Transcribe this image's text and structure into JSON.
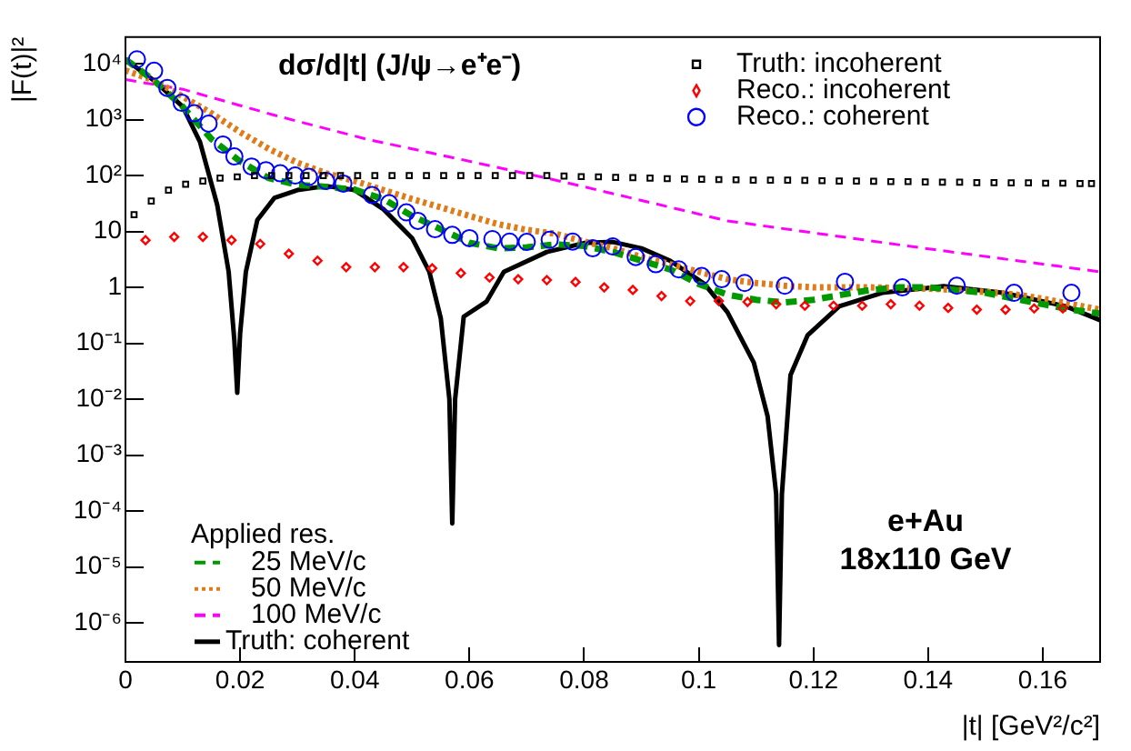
{
  "chart_data": {
    "type": "line",
    "title": "dσ/d|t| (J/ψ→e⁺e⁻)",
    "xlabel": "|t| [GeV²/c²]",
    "ylabel": "|F(t)|²",
    "legend_title": "Applied res.",
    "legend": "left",
    "grid": false,
    "log": "y",
    "annotations": [
      "e+Au",
      "18x110 GeV"
    ],
    "xlim": [
      0,
      0.17
    ],
    "xticks": [
      0,
      0.02,
      0.04,
      0.06,
      0.08,
      0.1,
      0.12,
      0.14,
      0.16
    ],
    "ylim": [
      2e-07,
      30000
    ],
    "yticks": [
      {
        "value": 1e-06,
        "label": "10⁻⁶"
      },
      {
        "value": 1e-05,
        "label": "10⁻⁵"
      },
      {
        "value": 0.0001,
        "label": "10⁻⁴"
      },
      {
        "value": 0.001,
        "label": "10⁻³"
      },
      {
        "value": 0.01,
        "label": "10⁻²"
      },
      {
        "value": 0.1,
        "label": "10⁻¹"
      },
      1,
      10,
      {
        "value": 100,
        "label": "10²"
      },
      {
        "value": 1000,
        "label": "10³"
      },
      {
        "value": 10000,
        "label": "10⁴"
      }
    ],
    "series": [
      {
        "name": "Truth: incoherent",
        "type": "scatter",
        "marker": "square",
        "color": "#000000",
        "x": [
          0.0015,
          0.0045,
          0.0075,
          0.0105,
          0.0135,
          0.0165,
          0.0195,
          0.0225,
          0.0255,
          0.0285,
          0.0315,
          0.0345,
          0.0375,
          0.0405,
          0.0435,
          0.0465,
          0.0495,
          0.0525,
          0.0555,
          0.0585,
          0.0615,
          0.0645,
          0.0675,
          0.0705,
          0.0735,
          0.0765,
          0.0795,
          0.0825,
          0.0855,
          0.0885,
          0.0915,
          0.0945,
          0.0975,
          0.1005,
          0.1035,
          0.1065,
          0.1095,
          0.1125,
          0.1155,
          0.1185,
          0.1215,
          0.1245,
          0.1275,
          0.1305,
          0.1335,
          0.1365,
          0.1395,
          0.1425,
          0.1455,
          0.1485,
          0.1515,
          0.1545,
          0.1575,
          0.1605,
          0.1635,
          0.1665,
          0.1685
        ],
        "values": [
          20,
          35,
          55,
          70,
          80,
          90,
          95,
          100,
          100,
          100,
          100,
          100,
          100,
          100,
          100,
          100,
          100,
          100,
          100,
          100,
          100,
          100,
          100,
          100,
          100,
          98,
          96,
          95,
          93,
          92,
          90,
          88,
          87,
          86,
          85,
          84,
          83,
          83,
          83,
          82,
          81,
          80,
          80,
          79,
          78,
          78,
          77,
          76,
          76,
          75,
          75,
          74,
          74,
          73,
          73,
          72,
          72
        ]
      },
      {
        "name": "Reco.: incoherent",
        "type": "scatter",
        "marker": "diamond",
        "color": "#ff0000",
        "x": [
          0.0035,
          0.0085,
          0.0135,
          0.0185,
          0.0235,
          0.0285,
          0.0335,
          0.0385,
          0.0435,
          0.0485,
          0.0535,
          0.0585,
          0.0635,
          0.0685,
          0.0735,
          0.0785,
          0.0835,
          0.0885,
          0.0935,
          0.0985,
          0.1035,
          0.1085,
          0.1135,
          0.1185,
          0.1235,
          0.1285,
          0.1335,
          0.1385,
          0.1435,
          0.1485,
          0.1535,
          0.1585,
          0.1635
        ],
        "values": [
          7,
          8,
          8,
          7,
          6,
          4,
          3,
          2.3,
          2.3,
          2.3,
          2.2,
          1.8,
          1.5,
          1.4,
          1.35,
          1.25,
          1.0,
          0.9,
          0.7,
          0.57,
          0.57,
          0.55,
          0.5,
          0.47,
          0.47,
          0.47,
          0.5,
          0.47,
          0.43,
          0.4,
          0.4,
          0.42,
          0.42
        ]
      },
      {
        "name": "Reco.: coherent",
        "type": "scatter",
        "marker": "circle",
        "color": "#0000ff",
        "x": [
          0.002,
          0.005,
          0.0073,
          0.0098,
          0.012,
          0.0145,
          0.017,
          0.019,
          0.022,
          0.0245,
          0.027,
          0.0296,
          0.032,
          0.035,
          0.038,
          0.043,
          0.046,
          0.049,
          0.051,
          0.054,
          0.057,
          0.06,
          0.064,
          0.067,
          0.07,
          0.074,
          0.078,
          0.0815,
          0.085,
          0.089,
          0.0925,
          0.0965,
          0.1005,
          0.104,
          0.108,
          0.115,
          0.1255,
          0.1355,
          0.145,
          0.155,
          0.165
        ],
        "values": [
          12000,
          7500,
          3700,
          2000,
          1300,
          850,
          360,
          220,
          145,
          125,
          110,
          100,
          95,
          80,
          72,
          45,
          32,
          22,
          15.5,
          11,
          8.7,
          7.6,
          7.3,
          6.6,
          6.5,
          7.1,
          6.6,
          5,
          5.4,
          3.5,
          2.6,
          2.1,
          1.6,
          1.4,
          1.2,
          1.07,
          1.26,
          1.0,
          1.07,
          0.8,
          0.8
        ]
      },
      {
        "name": "25 MeV/c",
        "type": "line",
        "marker": "none",
        "line_style": "dashed",
        "color": "#009900",
        "x": [
          0,
          0.005,
          0.01,
          0.015,
          0.02,
          0.025,
          0.03,
          0.035,
          0.04,
          0.045,
          0.05,
          0.055,
          0.06,
          0.065,
          0.07,
          0.075,
          0.08,
          0.085,
          0.09,
          0.095,
          0.1,
          0.105,
          0.11,
          0.115,
          0.12,
          0.125,
          0.13,
          0.135,
          0.14,
          0.145,
          0.15,
          0.155,
          0.16,
          0.165,
          0.17
        ],
        "values": [
          12000,
          5000,
          1700,
          450,
          180,
          90,
          68,
          63,
          56,
          38,
          19,
          11,
          6.3,
          5,
          5.2,
          5.9,
          5.5,
          4.3,
          3,
          2.1,
          1.15,
          0.74,
          0.6,
          0.54,
          0.6,
          0.74,
          0.9,
          1.0,
          1.0,
          0.9,
          0.8,
          0.63,
          0.5,
          0.4,
          0.34
        ]
      },
      {
        "name": "50 MeV/c",
        "type": "line",
        "marker": "none",
        "line_style": "dotted",
        "color": "#e07b1a",
        "x": [
          0,
          0.005,
          0.01,
          0.015,
          0.02,
          0.025,
          0.03,
          0.035,
          0.04,
          0.045,
          0.05,
          0.055,
          0.06,
          0.065,
          0.07,
          0.075,
          0.08,
          0.085,
          0.09,
          0.095,
          0.1,
          0.105,
          0.11,
          0.115,
          0.12,
          0.125,
          0.13,
          0.135,
          0.14,
          0.145,
          0.15,
          0.155,
          0.16,
          0.165,
          0.17
        ],
        "values": [
          7600,
          5000,
          2600,
          1300,
          600,
          300,
          170,
          110,
          80,
          55,
          38,
          27,
          19,
          13.5,
          10.7,
          9.1,
          6.6,
          5,
          3.5,
          2.6,
          1.9,
          1.4,
          1.2,
          1.07,
          1.0,
          1.0,
          1.0,
          0.98,
          0.95,
          0.9,
          0.83,
          0.75,
          0.63,
          0.5,
          0.4
        ]
      },
      {
        "name": "100 MeV/c",
        "type": "line",
        "marker": "none",
        "line_style": "dashed",
        "color": "#ff00ff",
        "x": [
          0,
          0.01,
          0.026,
          0.042,
          0.058,
          0.0735,
          0.08,
          0.105,
          0.137,
          0.17
        ],
        "values": [
          5200,
          3500,
          1200,
          450,
          200,
          90,
          63,
          15.5,
          5.4,
          1.9
        ]
      },
      {
        "name": "Truth: coherent",
        "type": "line",
        "marker": "none",
        "line_style": "solid",
        "color": "#000000",
        "x": [
          0,
          0.005,
          0.01,
          0.013,
          0.016,
          0.018,
          0.019,
          0.0195,
          0.02,
          0.021,
          0.023,
          0.026,
          0.03,
          0.035,
          0.04,
          0.045,
          0.05,
          0.053,
          0.055,
          0.0565,
          0.057,
          0.0575,
          0.059,
          0.063,
          0.066,
          0.0735,
          0.08,
          0.085,
          0.09,
          0.095,
          0.101,
          0.105,
          0.1096,
          0.112,
          0.1135,
          0.114,
          0.1145,
          0.116,
          0.119,
          0.1245,
          0.132,
          0.1427,
          0.153,
          0.164,
          0.17
        ],
        "values": [
          12000,
          5000,
          1700,
          400,
          30,
          1.9,
          0.11,
          0.013,
          0.15,
          1.9,
          16,
          40,
          55,
          65,
          55,
          25,
          7.6,
          1.9,
          0.28,
          0.01,
          6e-05,
          0.01,
          0.3,
          0.56,
          1.9,
          4.3,
          6.2,
          6.5,
          5,
          3,
          1.15,
          0.36,
          0.045,
          0.005,
          0.0002,
          4e-07,
          0.0002,
          0.027,
          0.14,
          0.46,
          0.8,
          1.05,
          0.8,
          0.46,
          0.26
        ]
      }
    ]
  }
}
